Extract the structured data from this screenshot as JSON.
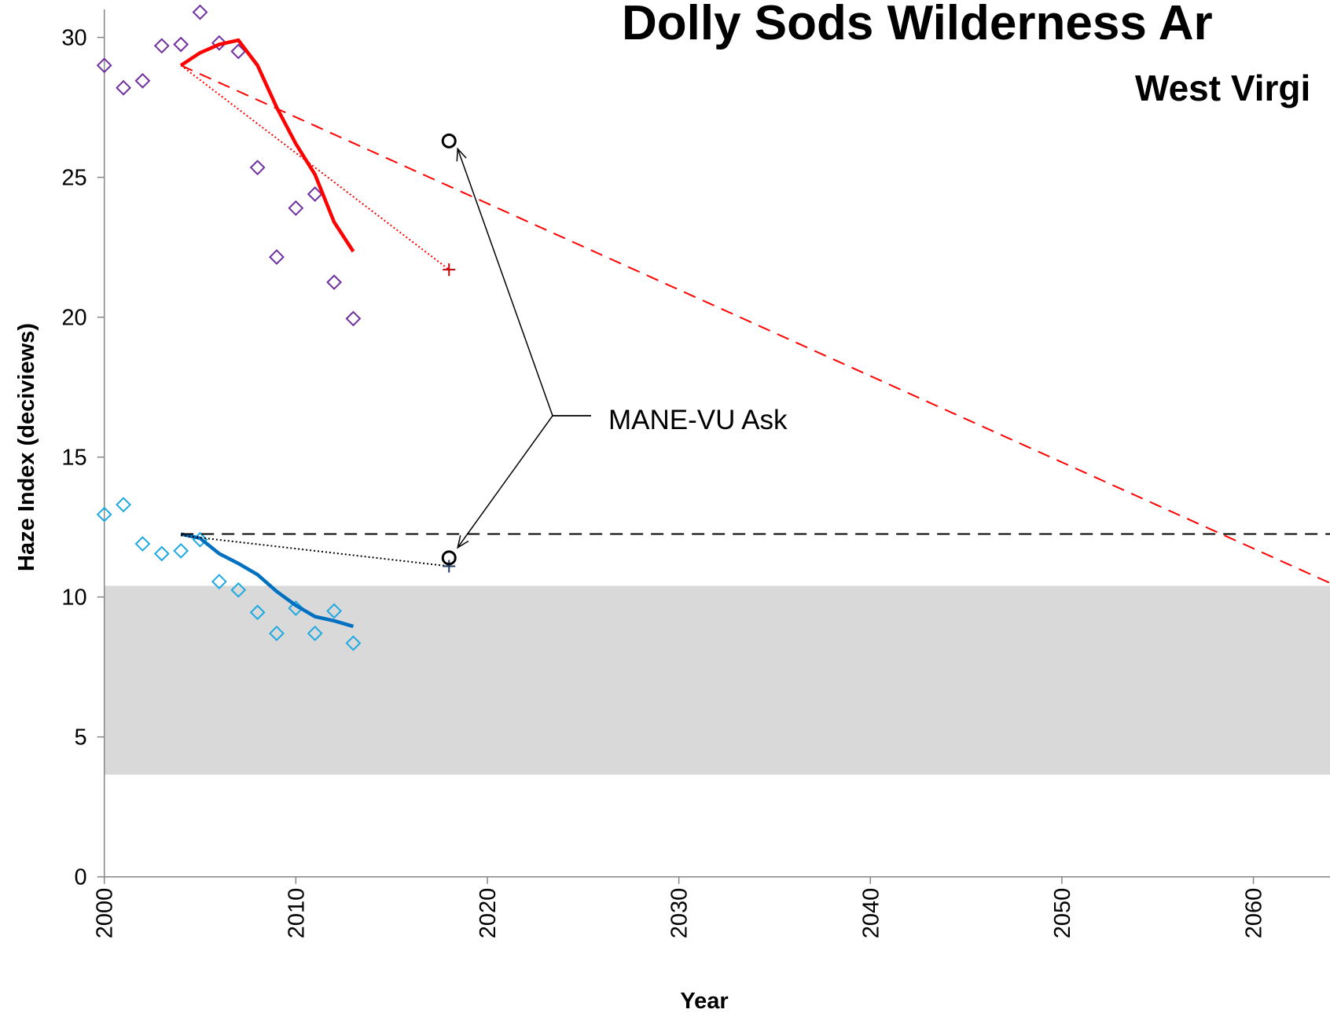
{
  "chart_data": {
    "type": "line",
    "title": "Dolly Sods Wilderness Ar",
    "subtitle": "West Virgi",
    "x_label": "Year",
    "y_label": "Haze Index (deciviews)",
    "annotation": "MANE-VU Ask",
    "xlim": [
      2000,
      2064
    ],
    "ylim": [
      0,
      31
    ],
    "xticks": [
      2000,
      2010,
      2020,
      2030,
      2040,
      2050,
      2060
    ],
    "yticks": [
      0,
      5,
      10,
      15,
      20,
      25,
      30
    ],
    "band": {
      "values": [
        3.65,
        10.4
      ],
      "color": "#d9d9d9"
    },
    "series": [
      {
        "color": "#7030a0",
        "style": "diamond",
        "x": [
          2000,
          2001,
          2002,
          2003,
          2004,
          2005,
          2006,
          2007,
          2008,
          2009,
          2010,
          2011,
          2012,
          2013
        ],
        "values": [
          29.0,
          28.2,
          28.45,
          29.7,
          29.75,
          30.9,
          29.8,
          29.5,
          25.35,
          22.15,
          23.9,
          24.4,
          21.25,
          19.95
        ]
      },
      {
        "color": "#1fa9e1",
        "style": "diamond",
        "x": [
          2000,
          2001,
          2002,
          2003,
          2004,
          2005,
          2006,
          2007,
          2008,
          2009,
          2010,
          2011,
          2012,
          2013
        ],
        "values": [
          12.95,
          13.3,
          11.9,
          11.55,
          11.65,
          12.05,
          10.55,
          10.25,
          9.45,
          8.7,
          9.6,
          8.7,
          9.5,
          8.35
        ]
      },
      {
        "color": "#ff0000",
        "style": "solid",
        "x": [
          2004,
          2005,
          2006,
          2007,
          2008,
          2009,
          2010,
          2011,
          2012,
          2013
        ],
        "values": [
          29.0,
          29.45,
          29.75,
          29.9,
          29.0,
          27.5,
          26.2,
          25.1,
          23.4,
          22.35
        ]
      },
      {
        "color": "#0070c0",
        "style": "solid",
        "x": [
          2004,
          2005,
          2006,
          2007,
          2008,
          2009,
          2010,
          2011,
          2012,
          2013
        ],
        "values": [
          12.25,
          12.1,
          11.55,
          11.2,
          10.8,
          10.2,
          9.7,
          9.3,
          9.15,
          8.95
        ]
      },
      {
        "color": "#ff0000",
        "style": "dotted",
        "x": [
          2004,
          2018
        ],
        "values": [
          29.0,
          21.7
        ]
      },
      {
        "color": "#000000",
        "style": "dotted",
        "x": [
          2004,
          2018
        ],
        "values": [
          12.2,
          11.1
        ]
      },
      {
        "color": "#ff0000",
        "style": "dashed",
        "x": [
          2004,
          2064
        ],
        "values": [
          29.0,
          10.5
        ]
      },
      {
        "color": "#000000",
        "style": "dashed",
        "x": [
          2004,
          2064
        ],
        "values": [
          12.25,
          12.25
        ]
      },
      {
        "color": "#c00000",
        "style": "plus",
        "x": [
          2018
        ],
        "values": [
          21.7
        ]
      },
      {
        "color": "#1f3864",
        "style": "plus",
        "x": [
          2018
        ],
        "values": [
          11.1
        ]
      },
      {
        "color": "#000000",
        "style": "circle",
        "x": [
          2018,
          2018
        ],
        "values": [
          26.3,
          11.4
        ]
      }
    ]
  }
}
